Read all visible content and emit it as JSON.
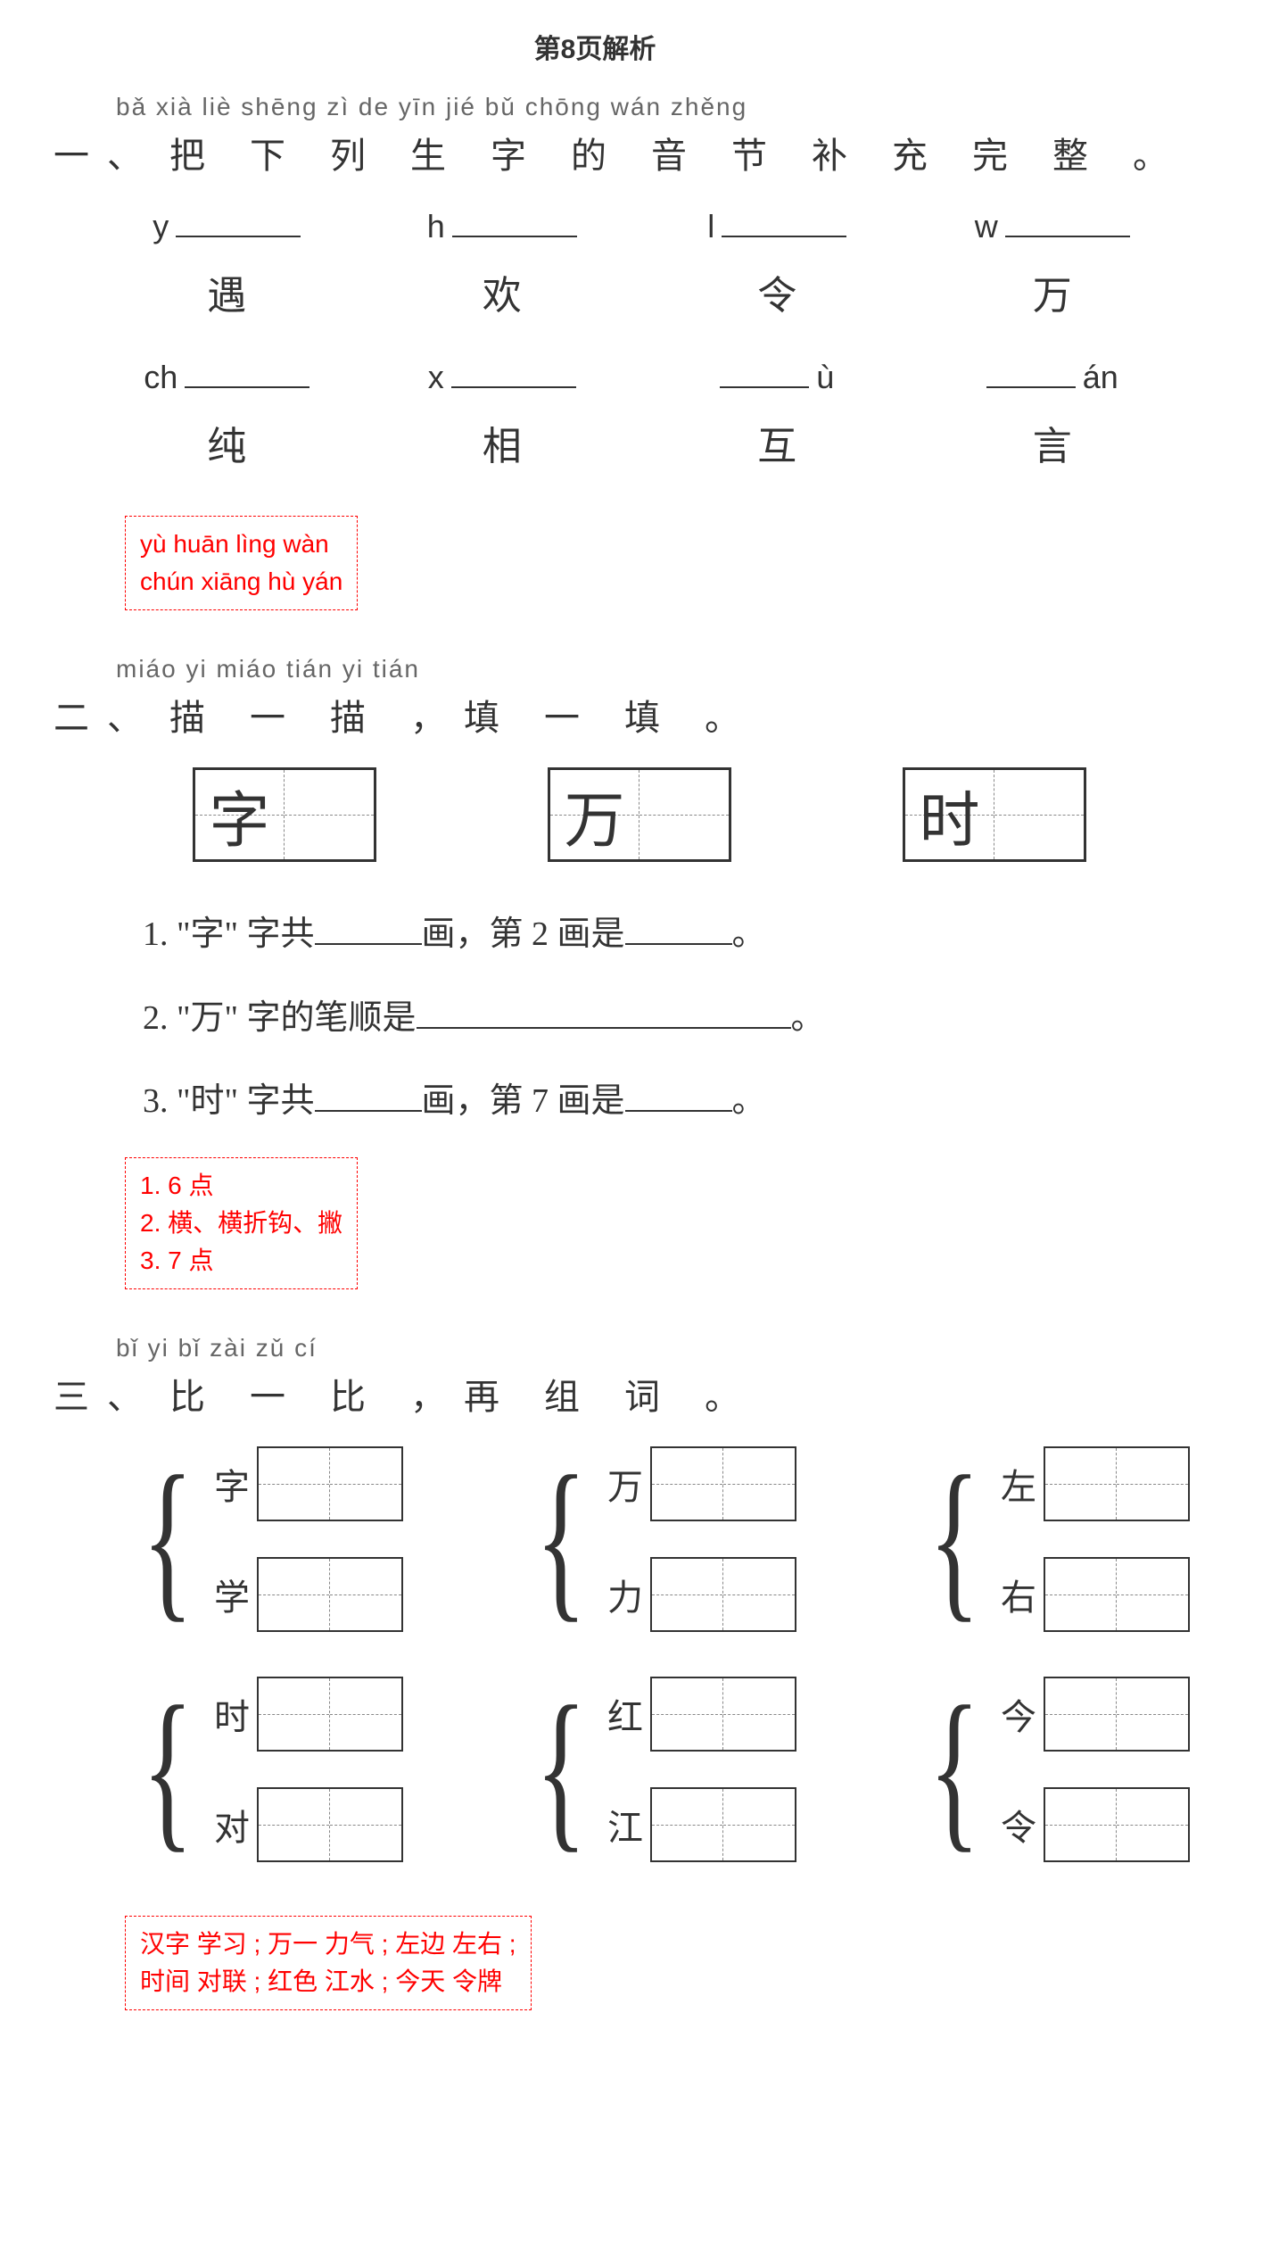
{
  "page_title": "第8页解析",
  "colors": {
    "text": "#333333",
    "answer": "#ff0000",
    "answer_border": "#ff0000",
    "grid_border": "#333333",
    "grid_dash": "#888888",
    "bg": "#ffffff"
  },
  "section1": {
    "pinyin": "bǎ  xià  liè  shēng  zì   de  yīn  jié   bǔ  chōng  wán  zhěng",
    "num": "一、",
    "hanzi": "把 下 列 生 字 的 音 节 补 充  完  整 。",
    "row1": [
      {
        "prefix": "y",
        "suffix": "",
        "char": "遇"
      },
      {
        "prefix": "h",
        "suffix": "",
        "char": "欢"
      },
      {
        "prefix": "l",
        "suffix": "",
        "char": "令"
      },
      {
        "prefix": "w",
        "suffix": "",
        "char": "万"
      }
    ],
    "row2": [
      {
        "prefix": "ch",
        "suffix": "",
        "char": "纯"
      },
      {
        "prefix": "x",
        "suffix": "",
        "char": "相"
      },
      {
        "prefix": "",
        "suffix": "ù",
        "char": "互"
      },
      {
        "prefix": "",
        "suffix": "án",
        "char": "言"
      }
    ],
    "answer_lines": [
      "yù  huān  lìng  wàn",
      "chún  xiāng  hù  yán"
    ]
  },
  "section2": {
    "pinyin": "miáo  yi  miáo     tián  yi  tián",
    "num": "二、",
    "hanzi": "描 一 描 ，填 一 填 。",
    "chars": [
      "字",
      "万",
      "时"
    ],
    "questions": [
      {
        "n": "1.",
        "parts": [
          "\"字\" 字共",
          "画，第 2 画是",
          "。"
        ],
        "blanks": [
          "short",
          "short"
        ]
      },
      {
        "n": "2.",
        "parts": [
          "\"万\" 字的笔顺是",
          "。"
        ],
        "blanks": [
          "long"
        ]
      },
      {
        "n": "3.",
        "parts": [
          "\"时\" 字共",
          "画，第 7 画是",
          "。"
        ],
        "blanks": [
          "short",
          "short"
        ]
      }
    ],
    "answer_lines": [
      "1. 6  点",
      "2. 横、横折钩、撇",
      "3. 7  点"
    ]
  },
  "section3": {
    "pinyin": "bǐ  yi  bǐ      zài  zǔ  cí",
    "num": "三、",
    "hanzi": "比 一 比 ，再 组 词 。",
    "pairs_row1": [
      {
        "a": "字",
        "b": "学"
      },
      {
        "a": "万",
        "b": "力"
      },
      {
        "a": "左",
        "b": "右"
      }
    ],
    "pairs_row2": [
      {
        "a": "时",
        "b": "对"
      },
      {
        "a": "红",
        "b": "江"
      },
      {
        "a": "今",
        "b": "令"
      }
    ],
    "answer_lines": [
      "汉字   学习 ; 万一   力气 ; 左边   左右 ;",
      "时间   对联 ; 红色   江水 ; 今天   令牌"
    ]
  }
}
